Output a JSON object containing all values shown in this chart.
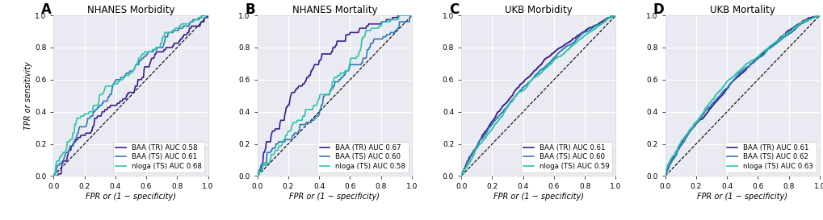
{
  "panels": [
    {
      "label": "A",
      "title": "NHANES Morbidity",
      "curves": [
        {
          "name": "BAA (TR) AUC 0.58",
          "auc": 0.58,
          "color": "#3B1E8E",
          "lw": 1.2,
          "seed": 42,
          "n": 300,
          "smooth": false
        },
        {
          "name": "BAA (TS) AUC 0.61",
          "auc": 0.61,
          "color": "#2B7CB5",
          "lw": 1.2,
          "seed": 77,
          "n": 300,
          "smooth": false
        },
        {
          "name": "nloga (TS) AUC 0.68",
          "auc": 0.68,
          "color": "#2BC4A8",
          "lw": 1.2,
          "seed": 33,
          "n": 300,
          "smooth": false
        }
      ]
    },
    {
      "label": "B",
      "title": "NHANES Mortality",
      "curves": [
        {
          "name": "BAA (TR) AUC 0.67",
          "auc": 0.67,
          "color": "#3B1E8E",
          "lw": 1.2,
          "seed": 10,
          "n": 300,
          "smooth": false
        },
        {
          "name": "BAA (TS) AUC 0.60",
          "auc": 0.6,
          "color": "#2B7CB5",
          "lw": 1.2,
          "seed": 110,
          "n": 300,
          "smooth": false
        },
        {
          "name": "nloga (TS) AUC 0.58",
          "auc": 0.58,
          "color": "#2BC4A8",
          "lw": 1.2,
          "seed": 120,
          "n": 300,
          "smooth": false
        }
      ]
    },
    {
      "label": "C",
      "title": "UKB Morbidity",
      "curves": [
        {
          "name": "BAA (TR) AUC 0.61",
          "auc": 0.61,
          "color": "#3B1E8E",
          "lw": 1.2,
          "seed": 200,
          "n": 5000,
          "smooth": true
        },
        {
          "name": "BAA (TS) AUC 0.60",
          "auc": 0.6,
          "color": "#2B7CB5",
          "lw": 1.2,
          "seed": 210,
          "n": 5000,
          "smooth": true
        },
        {
          "name": "nloga (TS) AUC 0.59",
          "auc": 0.59,
          "color": "#2BC4A8",
          "lw": 1.2,
          "seed": 220,
          "n": 5000,
          "smooth": true
        }
      ]
    },
    {
      "label": "D",
      "title": "UKB Mortality",
      "curves": [
        {
          "name": "BAA (TR) AUC 0.61",
          "auc": 0.61,
          "color": "#3B1E8E",
          "lw": 1.2,
          "seed": 300,
          "n": 5000,
          "smooth": true
        },
        {
          "name": "BAA (TS) AUC 0.62",
          "auc": 0.62,
          "color": "#2B7CB5",
          "lw": 1.2,
          "seed": 310,
          "n": 5000,
          "smooth": true
        },
        {
          "name": "nloga (TS) AUC 0.63",
          "auc": 0.63,
          "color": "#2BC4A8",
          "lw": 1.2,
          "seed": 320,
          "n": 5000,
          "smooth": true
        }
      ]
    }
  ],
  "xlabel": "FPR or (1 − specificity)",
  "ylabel": "TPR or sensitivity",
  "bg_color": "#eaeaf2",
  "grid_color": "white",
  "legend_loc": "lower right",
  "tick_fontsize": 6.5,
  "label_fontsize": 7,
  "title_fontsize": 8.5,
  "legend_fontsize": 6.2,
  "panel_label_fontsize": 12
}
